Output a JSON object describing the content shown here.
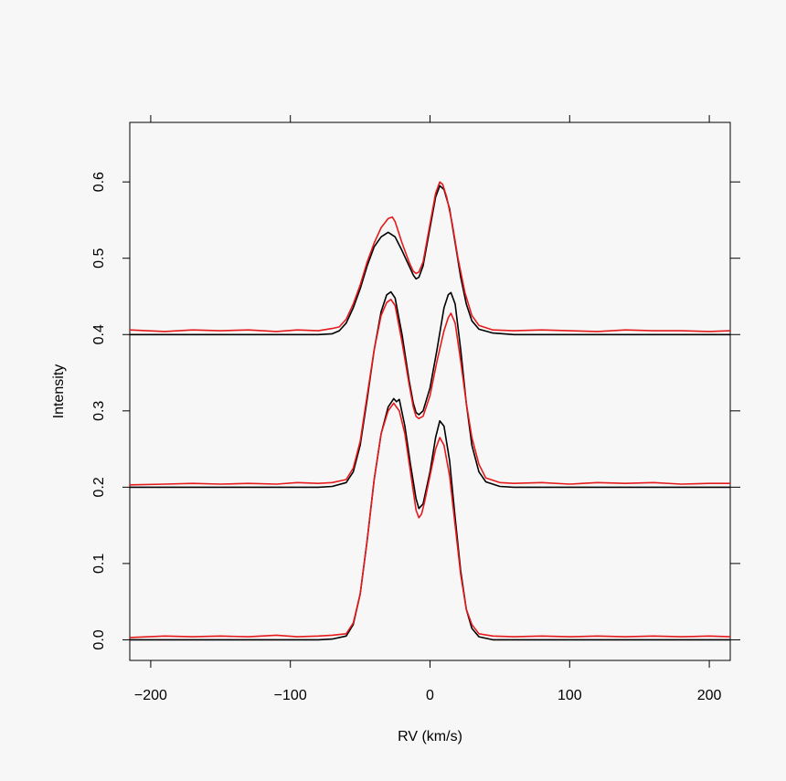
{
  "page": {
    "title": ""
  },
  "chart_data": {
    "type": "line",
    "title": "",
    "xlabel": "RV (km/s)",
    "ylabel": "Intensity",
    "xlim": [
      -215,
      215
    ],
    "ylim": [
      -0.027,
      0.678
    ],
    "x_ticks": [
      -200,
      -100,
      0,
      100,
      200
    ],
    "x_tick_labels": [
      "−200",
      "−100",
      "0",
      "100",
      "200"
    ],
    "y_ticks": [
      0.0,
      0.1,
      0.2,
      0.3,
      0.4,
      0.5,
      0.6
    ],
    "y_tick_labels": [
      "0.0",
      "0.1",
      "0.2",
      "0.3",
      "0.4",
      "0.5",
      "0.6"
    ],
    "grid": false,
    "legend": "none",
    "colors": {
      "model": "#000000",
      "observed": "#e41a1c",
      "frame": "#000000",
      "background": "#f7f7f7"
    },
    "profiles": [
      {
        "offset": 0.0,
        "model": [
          [
            -215,
            0.0
          ],
          [
            -80,
            0.0
          ],
          [
            -70,
            0.001
          ],
          [
            -60,
            0.005
          ],
          [
            -55,
            0.02
          ],
          [
            -50,
            0.06
          ],
          [
            -45,
            0.13
          ],
          [
            -40,
            0.21
          ],
          [
            -35,
            0.27
          ],
          [
            -30,
            0.305
          ],
          [
            -26,
            0.316
          ],
          [
            -24,
            0.312
          ],
          [
            -22,
            0.315
          ],
          [
            -18,
            0.28
          ],
          [
            -14,
            0.23
          ],
          [
            -10,
            0.185
          ],
          [
            -8,
            0.172
          ],
          [
            -5,
            0.178
          ],
          [
            0,
            0.22
          ],
          [
            4,
            0.265
          ],
          [
            7,
            0.287
          ],
          [
            10,
            0.28
          ],
          [
            14,
            0.235
          ],
          [
            18,
            0.16
          ],
          [
            22,
            0.09
          ],
          [
            26,
            0.04
          ],
          [
            30,
            0.015
          ],
          [
            35,
            0.004
          ],
          [
            45,
            0.0
          ],
          [
            215,
            0.0
          ]
        ],
        "observed": [
          [
            -215,
            0.003
          ],
          [
            -190,
            0.005
          ],
          [
            -170,
            0.004
          ],
          [
            -150,
            0.005
          ],
          [
            -130,
            0.004
          ],
          [
            -110,
            0.006
          ],
          [
            -95,
            0.004
          ],
          [
            -80,
            0.005
          ],
          [
            -70,
            0.006
          ],
          [
            -60,
            0.008
          ],
          [
            -55,
            0.022
          ],
          [
            -50,
            0.06
          ],
          [
            -45,
            0.13
          ],
          [
            -40,
            0.21
          ],
          [
            -35,
            0.27
          ],
          [
            -30,
            0.3
          ],
          [
            -26,
            0.31
          ],
          [
            -24,
            0.305
          ],
          [
            -22,
            0.3
          ],
          [
            -18,
            0.27
          ],
          [
            -14,
            0.22
          ],
          [
            -10,
            0.17
          ],
          [
            -8,
            0.16
          ],
          [
            -6,
            0.165
          ],
          [
            -4,
            0.18
          ],
          [
            0,
            0.215
          ],
          [
            4,
            0.25
          ],
          [
            7,
            0.265
          ],
          [
            10,
            0.255
          ],
          [
            14,
            0.215
          ],
          [
            18,
            0.15
          ],
          [
            22,
            0.085
          ],
          [
            26,
            0.04
          ],
          [
            30,
            0.02
          ],
          [
            35,
            0.008
          ],
          [
            45,
            0.005
          ],
          [
            60,
            0.004
          ],
          [
            80,
            0.005
          ],
          [
            100,
            0.004
          ],
          [
            120,
            0.005
          ],
          [
            140,
            0.004
          ],
          [
            160,
            0.005
          ],
          [
            180,
            0.004
          ],
          [
            200,
            0.005
          ],
          [
            215,
            0.004
          ]
        ]
      },
      {
        "offset": 0.2,
        "model": [
          [
            -215,
            0.0
          ],
          [
            -80,
            0.0
          ],
          [
            -70,
            0.001
          ],
          [
            -60,
            0.006
          ],
          [
            -55,
            0.02
          ],
          [
            -50,
            0.055
          ],
          [
            -45,
            0.115
          ],
          [
            -40,
            0.18
          ],
          [
            -35,
            0.23
          ],
          [
            -31,
            0.252
          ],
          [
            -28,
            0.256
          ],
          [
            -25,
            0.248
          ],
          [
            -20,
            0.2
          ],
          [
            -15,
            0.14
          ],
          [
            -12,
            0.11
          ],
          [
            -10,
            0.098
          ],
          [
            -8,
            0.095
          ],
          [
            -5,
            0.1
          ],
          [
            0,
            0.13
          ],
          [
            5,
            0.18
          ],
          [
            10,
            0.235
          ],
          [
            13,
            0.252
          ],
          [
            15,
            0.255
          ],
          [
            18,
            0.24
          ],
          [
            22,
            0.18
          ],
          [
            26,
            0.11
          ],
          [
            30,
            0.055
          ],
          [
            35,
            0.02
          ],
          [
            40,
            0.007
          ],
          [
            50,
            0.001
          ],
          [
            60,
            0.0
          ],
          [
            215,
            0.0
          ]
        ],
        "observed": [
          [
            -215,
            0.003
          ],
          [
            -190,
            0.004
          ],
          [
            -170,
            0.005
          ],
          [
            -150,
            0.004
          ],
          [
            -130,
            0.005
          ],
          [
            -110,
            0.004
          ],
          [
            -95,
            0.006
          ],
          [
            -80,
            0.005
          ],
          [
            -70,
            0.006
          ],
          [
            -60,
            0.01
          ],
          [
            -55,
            0.025
          ],
          [
            -50,
            0.06
          ],
          [
            -45,
            0.12
          ],
          [
            -40,
            0.18
          ],
          [
            -35,
            0.225
          ],
          [
            -31,
            0.242
          ],
          [
            -28,
            0.246
          ],
          [
            -25,
            0.238
          ],
          [
            -20,
            0.19
          ],
          [
            -15,
            0.135
          ],
          [
            -12,
            0.105
          ],
          [
            -10,
            0.093
          ],
          [
            -8,
            0.09
          ],
          [
            -5,
            0.093
          ],
          [
            0,
            0.12
          ],
          [
            5,
            0.165
          ],
          [
            10,
            0.205
          ],
          [
            13,
            0.222
          ],
          [
            15,
            0.228
          ],
          [
            18,
            0.215
          ],
          [
            22,
            0.165
          ],
          [
            26,
            0.11
          ],
          [
            30,
            0.065
          ],
          [
            35,
            0.03
          ],
          [
            40,
            0.012
          ],
          [
            50,
            0.006
          ],
          [
            60,
            0.005
          ],
          [
            80,
            0.006
          ],
          [
            100,
            0.004
          ],
          [
            120,
            0.006
          ],
          [
            140,
            0.005
          ],
          [
            160,
            0.006
          ],
          [
            180,
            0.004
          ],
          [
            200,
            0.005
          ],
          [
            215,
            0.005
          ]
        ]
      },
      {
        "offset": 0.4,
        "model": [
          [
            -215,
            0.0
          ],
          [
            -80,
            0.0
          ],
          [
            -70,
            0.001
          ],
          [
            -65,
            0.005
          ],
          [
            -60,
            0.015
          ],
          [
            -55,
            0.035
          ],
          [
            -50,
            0.06
          ],
          [
            -45,
            0.09
          ],
          [
            -40,
            0.115
          ],
          [
            -35,
            0.128
          ],
          [
            -30,
            0.134
          ],
          [
            -25,
            0.128
          ],
          [
            -20,
            0.11
          ],
          [
            -15,
            0.09
          ],
          [
            -12,
            0.078
          ],
          [
            -10,
            0.073
          ],
          [
            -8,
            0.075
          ],
          [
            -5,
            0.09
          ],
          [
            0,
            0.14
          ],
          [
            4,
            0.18
          ],
          [
            7,
            0.195
          ],
          [
            10,
            0.19
          ],
          [
            14,
            0.165
          ],
          [
            18,
            0.12
          ],
          [
            22,
            0.075
          ],
          [
            26,
            0.04
          ],
          [
            30,
            0.018
          ],
          [
            35,
            0.007
          ],
          [
            45,
            0.002
          ],
          [
            60,
            0.0
          ],
          [
            215,
            0.0
          ]
        ],
        "observed": [
          [
            -215,
            0.006
          ],
          [
            -190,
            0.004
          ],
          [
            -170,
            0.006
          ],
          [
            -150,
            0.005
          ],
          [
            -130,
            0.006
          ],
          [
            -110,
            0.004
          ],
          [
            -95,
            0.006
          ],
          [
            -80,
            0.005
          ],
          [
            -70,
            0.008
          ],
          [
            -65,
            0.01
          ],
          [
            -60,
            0.02
          ],
          [
            -55,
            0.04
          ],
          [
            -50,
            0.065
          ],
          [
            -45,
            0.095
          ],
          [
            -40,
            0.12
          ],
          [
            -35,
            0.14
          ],
          [
            -30,
            0.152
          ],
          [
            -27,
            0.154
          ],
          [
            -25,
            0.148
          ],
          [
            -20,
            0.12
          ],
          [
            -15,
            0.095
          ],
          [
            -12,
            0.083
          ],
          [
            -10,
            0.08
          ],
          [
            -8,
            0.082
          ],
          [
            -5,
            0.095
          ],
          [
            0,
            0.145
          ],
          [
            4,
            0.185
          ],
          [
            7,
            0.2
          ],
          [
            9,
            0.197
          ],
          [
            12,
            0.18
          ],
          [
            16,
            0.145
          ],
          [
            20,
            0.1
          ],
          [
            25,
            0.055
          ],
          [
            30,
            0.025
          ],
          [
            35,
            0.012
          ],
          [
            45,
            0.006
          ],
          [
            60,
            0.005
          ],
          [
            80,
            0.006
          ],
          [
            100,
            0.005
          ],
          [
            120,
            0.004
          ],
          [
            140,
            0.006
          ],
          [
            160,
            0.005
          ],
          [
            180,
            0.005
          ],
          [
            200,
            0.004
          ],
          [
            215,
            0.005
          ]
        ]
      }
    ]
  }
}
